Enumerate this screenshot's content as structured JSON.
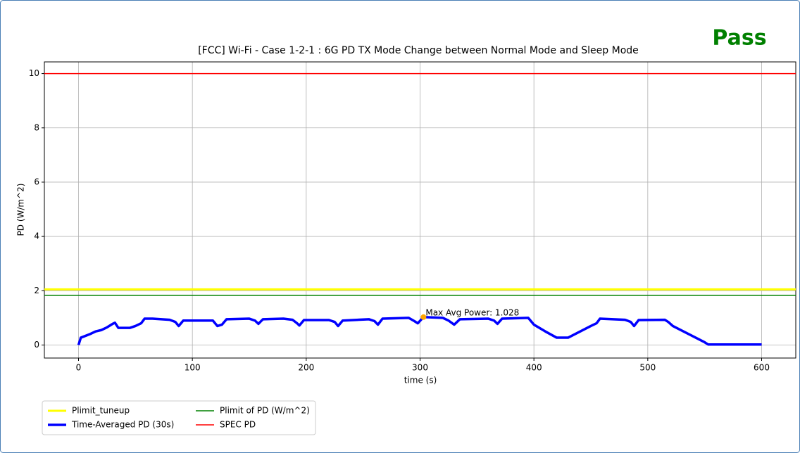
{
  "status": "Pass",
  "chart_data": {
    "type": "line",
    "title": "[FCC] Wi-Fi - Case 1-2-1 : 6G PD TX Mode Change between Normal Mode and Sleep Mode",
    "xlabel": "time (s)",
    "ylabel": "PD (W/m^2)",
    "xlim": [
      -30,
      630
    ],
    "ylim": [
      -0.48,
      10.43
    ],
    "xticks": [
      0,
      100,
      200,
      300,
      400,
      500,
      600
    ],
    "yticks": [
      0,
      2,
      4,
      6,
      8,
      10
    ],
    "grid": true,
    "legend": "below",
    "series": [
      {
        "name": "Plimit_tuneup",
        "color": "#ffff00",
        "linewidth": 3,
        "y": 2.05
      },
      {
        "name": "Time-Averaged PD (30s)",
        "color": "#0000ff",
        "linewidth": 3.5,
        "x": [
          0,
          2,
          10,
          15,
          20,
          25,
          30,
          32,
          35,
          45,
          50,
          55,
          58,
          65,
          80,
          85,
          88,
          92,
          110,
          118,
          122,
          126,
          130,
          150,
          155,
          158,
          162,
          180,
          188,
          192,
          194,
          198,
          220,
          225,
          228,
          232,
          255,
          260,
          263,
          267,
          290,
          295,
          298,
          303,
          320,
          325,
          330,
          335,
          360,
          365,
          368,
          372,
          395,
          400,
          410,
          420,
          430,
          450,
          455,
          458,
          480,
          485,
          488,
          492,
          515,
          518,
          522,
          550,
          553,
          600
        ],
        "values": [
          0,
          0.27,
          0.4,
          0.5,
          0.55,
          0.65,
          0.78,
          0.82,
          0.63,
          0.63,
          0.7,
          0.8,
          0.97,
          0.97,
          0.93,
          0.85,
          0.7,
          0.9,
          0.9,
          0.9,
          0.7,
          0.75,
          0.95,
          0.97,
          0.9,
          0.78,
          0.95,
          0.97,
          0.93,
          0.8,
          0.72,
          0.92,
          0.92,
          0.85,
          0.7,
          0.9,
          0.95,
          0.88,
          0.75,
          0.97,
          1.0,
          0.88,
          0.8,
          1.028,
          1.0,
          0.9,
          0.75,
          0.95,
          0.97,
          0.9,
          0.78,
          0.97,
          1.0,
          0.75,
          0.5,
          0.27,
          0.27,
          0.7,
          0.8,
          0.97,
          0.93,
          0.85,
          0.7,
          0.92,
          0.93,
          0.85,
          0.7,
          0.1,
          0.02,
          0.02
        ]
      },
      {
        "name": "Plimit of PD (W/m^2)",
        "color": "#008000",
        "linewidth": 1.5,
        "y": 1.83
      },
      {
        "name": "SPEC PD",
        "color": "#ff0000",
        "linewidth": 1.5,
        "y": 10
      }
    ],
    "max_point": {
      "x": 303,
      "y": 1.028,
      "color": "#ffa500",
      "label": "Max Avg Power: 1.028"
    }
  }
}
